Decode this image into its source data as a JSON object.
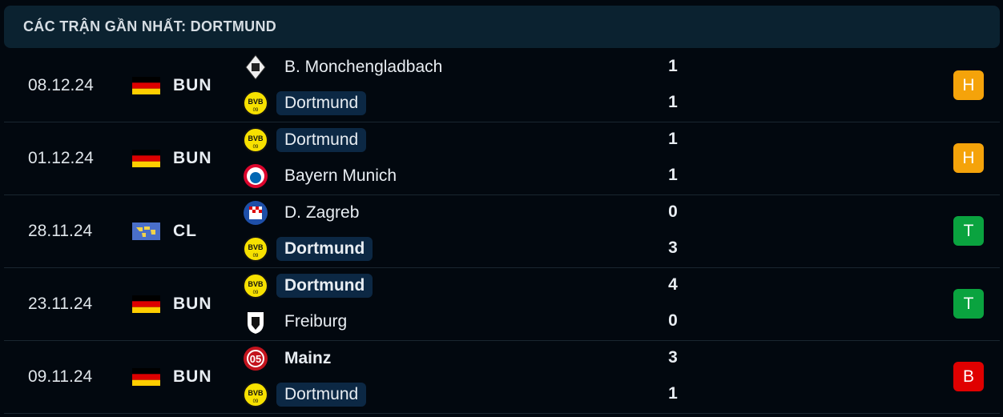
{
  "header": {
    "title": "CÁC TRẬN GẦN NHẤT: DORTMUND"
  },
  "colors": {
    "draw": "#f5a30a",
    "win": "#0aa33f",
    "loss": "#e00000",
    "highlight": "#0c2844"
  },
  "matches": [
    {
      "date": "08.12.24",
      "flag": "germany-flag",
      "competition": "BUN",
      "home": {
        "name": "B. Monchengladbach",
        "logo": "gladbach-logo",
        "score": "1"
      },
      "away": {
        "name": "Dortmund",
        "logo": "bvb-logo",
        "score": "1"
      },
      "result": "H",
      "result_type": "draw"
    },
    {
      "date": "01.12.24",
      "flag": "germany-flag",
      "competition": "BUN",
      "home": {
        "name": "Dortmund",
        "logo": "bvb-logo",
        "score": "1"
      },
      "away": {
        "name": "Bayern Munich",
        "logo": "bayern-logo",
        "score": "1"
      },
      "result": "H",
      "result_type": "draw"
    },
    {
      "date": "28.11.24",
      "flag": "world-flag",
      "competition": "CL",
      "home": {
        "name": "D. Zagreb",
        "logo": "zagreb-logo",
        "score": "0"
      },
      "away": {
        "name": "Dortmund",
        "logo": "bvb-logo",
        "score": "3"
      },
      "result": "T",
      "result_type": "win"
    },
    {
      "date": "23.11.24",
      "flag": "germany-flag",
      "competition": "BUN",
      "home": {
        "name": "Dortmund",
        "logo": "bvb-logo",
        "score": "4"
      },
      "away": {
        "name": "Freiburg",
        "logo": "freiburg-logo",
        "score": "0"
      },
      "result": "T",
      "result_type": "win"
    },
    {
      "date": "09.11.24",
      "flag": "germany-flag",
      "competition": "BUN",
      "home": {
        "name": "Mainz",
        "logo": "mainz-logo",
        "score": "3"
      },
      "away": {
        "name": "Dortmund",
        "logo": "bvb-logo",
        "score": "1"
      },
      "result": "B",
      "result_type": "loss"
    }
  ]
}
